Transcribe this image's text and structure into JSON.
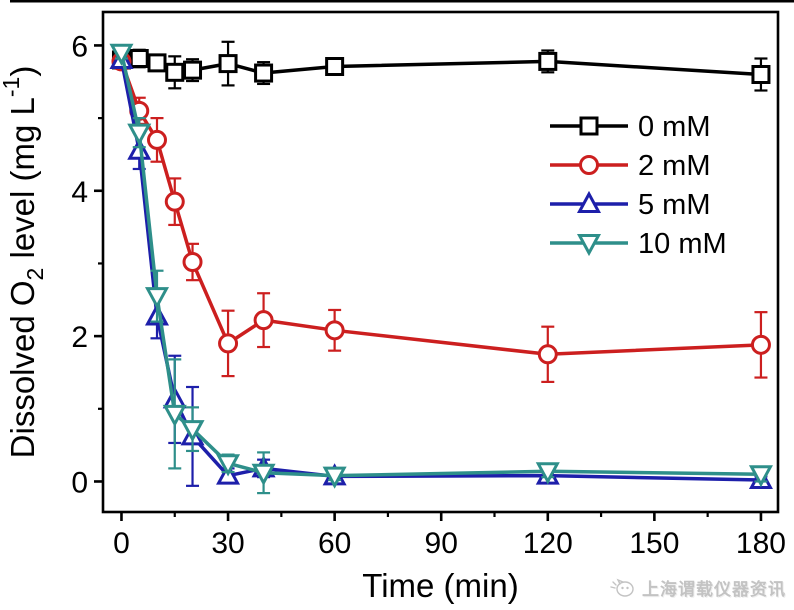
{
  "watermark": {
    "text": "上海谓载仪器资讯"
  },
  "chart_data": {
    "type": "line",
    "title": "",
    "xlabel": "Time (min)",
    "ylabel_segments": [
      {
        "t": "Dissolved O"
      },
      {
        "t": "2",
        "pos": "sub"
      },
      {
        "t": " level (mg L"
      },
      {
        "t": "-1",
        "pos": "sup"
      },
      {
        "t": ")"
      }
    ],
    "x": [
      0,
      5,
      10,
      15,
      20,
      30,
      40,
      60,
      120,
      180
    ],
    "x_ticks": [
      0,
      30,
      60,
      90,
      120,
      150,
      180
    ],
    "x_minor_ticks": [
      15,
      45,
      75,
      105,
      135,
      165
    ],
    "y_ticks": [
      0,
      2,
      4,
      6
    ],
    "y_minor_ticks": [
      1,
      3,
      5
    ],
    "xlim": [
      -5.2,
      184.8
    ],
    "ylim": [
      -0.42,
      6.46
    ],
    "grid": false,
    "legend_position": "upper-right-inside",
    "axis_color": "#000000",
    "series": [
      {
        "name": "0 mM",
        "color": "#000000",
        "marker": "square",
        "values": [
          5.8,
          5.82,
          5.76,
          5.63,
          5.66,
          5.75,
          5.62,
          5.71,
          5.78,
          5.6
        ],
        "errors": [
          0.08,
          0.12,
          0.1,
          0.22,
          0.15,
          0.3,
          0.15,
          0.08,
          0.15,
          0.22
        ]
      },
      {
        "name": "2 mM",
        "color": "#cc1f1f",
        "marker": "circle",
        "values": [
          5.78,
          5.1,
          4.7,
          3.85,
          3.02,
          1.9,
          2.22,
          2.08,
          1.75,
          1.88
        ],
        "errors": [
          0.1,
          0.18,
          0.3,
          0.32,
          0.25,
          0.45,
          0.37,
          0.28,
          0.38,
          0.45
        ]
      },
      {
        "name": "5 mM",
        "color": "#1d1faa",
        "marker": "triangle-up",
        "values": [
          5.8,
          4.55,
          2.27,
          1.13,
          0.62,
          0.08,
          0.18,
          0.07,
          0.08,
          0.02
        ],
        "errors": [
          0.1,
          0.25,
          0.3,
          0.6,
          0.68,
          0.1,
          0.12,
          0.05,
          0.07,
          0.05
        ]
      },
      {
        "name": "10 mM",
        "color": "#2e8f8a",
        "marker": "triangle-down",
        "values": [
          5.9,
          4.8,
          2.55,
          0.93,
          0.72,
          0.25,
          0.12,
          0.08,
          0.14,
          0.1
        ],
        "errors": [
          0.08,
          0.2,
          0.35,
          0.75,
          0.3,
          0.12,
          0.28,
          0.06,
          0.08,
          0.1
        ]
      }
    ]
  }
}
